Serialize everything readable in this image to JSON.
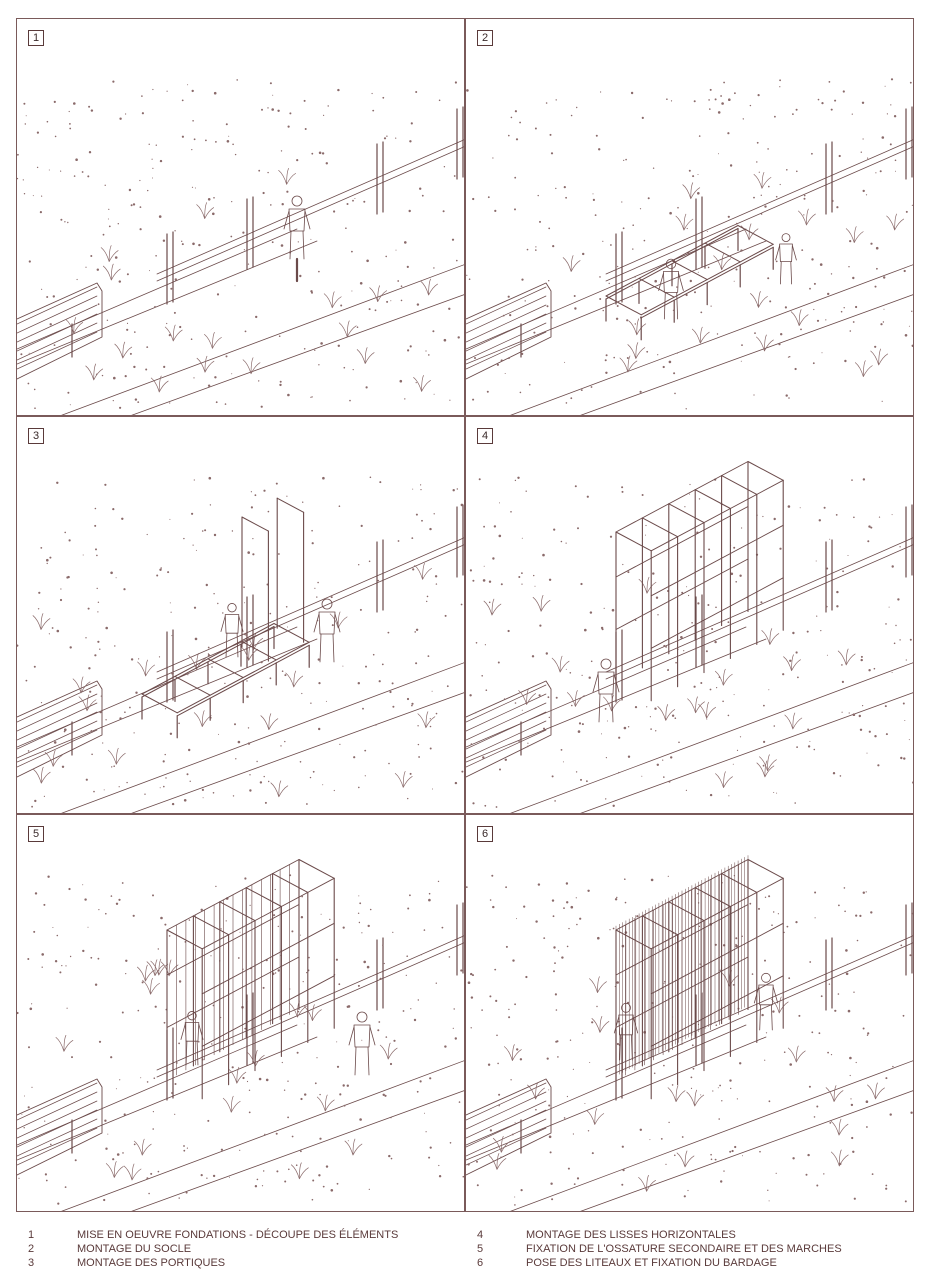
{
  "panels": [
    {
      "number": "1"
    },
    {
      "number": "2"
    },
    {
      "number": "3"
    },
    {
      "number": "4"
    },
    {
      "number": "5"
    },
    {
      "number": "6"
    }
  ],
  "legend": [
    {
      "number": "1",
      "text": "MISE EN OEUVRE FONDATIONS - DÉCOUPE DES ÉLÉMENTS"
    },
    {
      "number": "2",
      "text": "MONTAGE DU SOCLE"
    },
    {
      "number": "3",
      "text": "MONTAGE DES PORTIQUES"
    },
    {
      "number": "4",
      "text": "MONTAGE DES LISSES HORIZONTALES"
    },
    {
      "number": "5",
      "text": "FIXATION DE L'OSSATURE SECONDAIRE ET DES MARCHES"
    },
    {
      "number": "6",
      "text": "POSE DES LITEAUX ET FIXATION DU BARDAGE"
    }
  ],
  "colors": {
    "line": "#6b4a4a",
    "ink": "#5a3a3a",
    "vegetation": "#8a6a6a"
  }
}
